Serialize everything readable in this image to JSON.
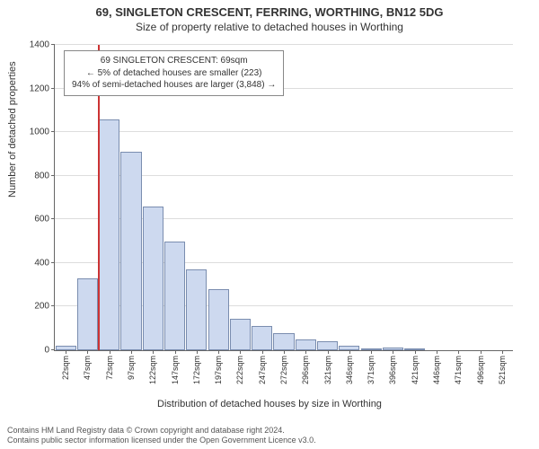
{
  "title_line1": "69, SINGLETON CRESCENT, FERRING, WORTHING, BN12 5DG",
  "title_line2": "Size of property relative to detached houses in Worthing",
  "y_axis_label": "Number of detached properties",
  "x_axis_label": "Distribution of detached houses by size in Worthing",
  "footer_line1": "Contains HM Land Registry data © Crown copyright and database right 2024.",
  "footer_line2": "Contains public sector information licensed under the Open Government Licence v3.0.",
  "annotation": {
    "line1": "69 SINGLETON CRESCENT: 69sqm",
    "line2": "← 5% of detached houses are smaller (223)",
    "line3": "94% of semi-detached houses are larger (3,848) →"
  },
  "chart": {
    "type": "histogram",
    "ylim": [
      0,
      1400
    ],
    "ytick_step": 200,
    "bar_fill": "#cdd9ef",
    "bar_stroke": "#7a8daf",
    "grid_color": "#dddddd",
    "background_color": "#ffffff",
    "marker_color": "#cc3333",
    "marker_x_index": 2,
    "categories": [
      "22sqm",
      "47sqm",
      "72sqm",
      "97sqm",
      "122sqm",
      "147sqm",
      "172sqm",
      "197sqm",
      "222sqm",
      "247sqm",
      "272sqm",
      "296sqm",
      "321sqm",
      "346sqm",
      "371sqm",
      "396sqm",
      "421sqm",
      "446sqm",
      "471sqm",
      "496sqm",
      "521sqm"
    ],
    "values": [
      20,
      330,
      1060,
      910,
      660,
      500,
      370,
      280,
      145,
      110,
      78,
      50,
      40,
      22,
      10,
      14,
      5,
      0,
      0,
      0,
      0
    ]
  }
}
